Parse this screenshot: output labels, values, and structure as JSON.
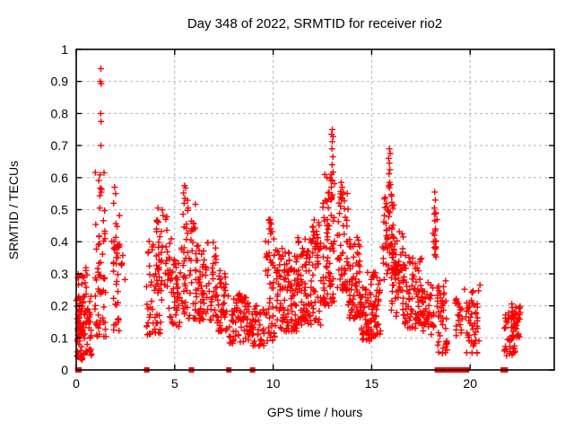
{
  "window": {
    "title": "Day 348 of 2022, SRMTID for receiver rio2"
  },
  "style": {
    "marker_color": "#ff0000",
    "grid_color": "#b4b4b4",
    "border_color": "#000000",
    "text_color": "#000000",
    "background": "#ffffff"
  },
  "chart_data": {
    "type": "scatter",
    "title": "Day 348 of 2022, SRMTID for receiver rio2",
    "xlabel": "GPS time / hours",
    "ylabel": "SRMTID / TECUs",
    "series_name": "SRMTID",
    "xlim": [
      0,
      24.27
    ],
    "ylim": [
      0,
      1
    ],
    "grid": true,
    "legend": "none",
    "x_ticks": [
      {
        "v": 0,
        "label": "0"
      },
      {
        "v": 5,
        "label": "5"
      },
      {
        "v": 10,
        "label": "10"
      },
      {
        "v": 15,
        "label": "15"
      },
      {
        "v": 20,
        "label": "20"
      }
    ],
    "y_ticks": [
      {
        "v": 0.0,
        "label": "0"
      },
      {
        "v": 0.1,
        "label": "0.1"
      },
      {
        "v": 0.2,
        "label": "0.2"
      },
      {
        "v": 0.3,
        "label": "0.3"
      },
      {
        "v": 0.4,
        "label": "0.4"
      },
      {
        "v": 0.5,
        "label": "0.5"
      },
      {
        "v": 0.6,
        "label": "0.6"
      },
      {
        "v": 0.7,
        "label": "0.7"
      },
      {
        "v": 0.8,
        "label": "0.8"
      },
      {
        "v": 0.9,
        "label": "0.9"
      },
      {
        "v": 1.0,
        "label": "1"
      }
    ],
    "marker": {
      "glyph": "plus",
      "size": 7,
      "color": "#ff0000"
    },
    "zero_marker": {
      "glyph": "filled-square",
      "size": 6,
      "color": "#ff0000"
    },
    "clusters": [
      [
        0.0,
        0.15,
        0.14,
        0.32,
        10,
        1.0
      ],
      [
        0.05,
        0.78,
        0.03,
        0.23,
        95,
        1.2
      ],
      [
        0.1,
        0.55,
        0.22,
        0.33,
        12,
        1.0
      ],
      [
        0.95,
        1.52,
        0.1,
        0.63,
        60,
        1.5
      ],
      [
        1.8,
        2.2,
        0.12,
        0.5,
        38,
        1.3
      ],
      [
        2.25,
        2.55,
        0.24,
        0.36,
        5,
        1.0
      ],
      [
        3.55,
        4.35,
        0.11,
        0.42,
        50,
        1.2
      ],
      [
        4.05,
        4.85,
        0.24,
        0.5,
        48,
        1.1
      ],
      [
        4.6,
        5.3,
        0.13,
        0.36,
        45,
        1.2
      ],
      [
        5.35,
        6.05,
        0.16,
        0.53,
        60,
        1.4
      ],
      [
        6.05,
        7.1,
        0.15,
        0.4,
        85,
        1.3
      ],
      [
        7.1,
        7.75,
        0.12,
        0.31,
        50,
        1.2
      ],
      [
        7.75,
        8.7,
        0.08,
        0.24,
        65,
        1.1
      ],
      [
        8.7,
        9.55,
        0.07,
        0.21,
        55,
        1.1
      ],
      [
        9.6,
        10.1,
        0.09,
        0.47,
        50,
        1.5
      ],
      [
        10.1,
        11.2,
        0.12,
        0.38,
        115,
        1.3
      ],
      [
        11.2,
        12.45,
        0.14,
        0.42,
        125,
        1.3
      ],
      [
        11.9,
        12.35,
        0.39,
        0.47,
        10,
        1.0
      ],
      [
        12.5,
        13.15,
        0.2,
        0.62,
        75,
        1.4
      ],
      [
        13.25,
        13.8,
        0.24,
        0.56,
        55,
        1.3
      ],
      [
        13.8,
        14.45,
        0.16,
        0.42,
        70,
        1.3
      ],
      [
        14.45,
        15.45,
        0.09,
        0.31,
        105,
        1.2
      ],
      [
        15.55,
        16.15,
        0.28,
        0.56,
        50,
        1.2
      ],
      [
        16.0,
        16.65,
        0.16,
        0.45,
        65,
        1.3
      ],
      [
        16.1,
        16.35,
        0.29,
        0.34,
        12,
        1.0
      ],
      [
        16.65,
        17.6,
        0.13,
        0.36,
        85,
        1.3
      ],
      [
        17.6,
        18.15,
        0.11,
        0.28,
        40,
        1.2
      ],
      [
        18.1,
        18.35,
        0.33,
        0.5,
        12,
        1.0
      ],
      [
        18.3,
        18.85,
        0.05,
        0.28,
        45,
        1.2
      ],
      [
        19.25,
        19.6,
        0.1,
        0.23,
        20,
        1.0
      ],
      [
        19.7,
        20.45,
        0.05,
        0.26,
        48,
        1.1
      ],
      [
        21.65,
        22.3,
        0.04,
        0.18,
        40,
        1.1
      ],
      [
        22.1,
        22.55,
        0.1,
        0.21,
        35,
        1.0
      ]
    ],
    "points": [
      [
        1.25,
        0.94
      ],
      [
        1.22,
        0.9
      ],
      [
        1.27,
        0.893
      ],
      [
        1.24,
        0.8
      ],
      [
        1.26,
        0.775
      ],
      [
        1.25,
        0.7
      ],
      [
        1.95,
        0.57
      ],
      [
        2.0,
        0.55
      ],
      [
        1.9,
        0.52
      ],
      [
        4.15,
        0.505
      ],
      [
        5.5,
        0.575
      ],
      [
        5.55,
        0.568
      ],
      [
        5.45,
        0.552
      ],
      [
        5.52,
        0.535
      ],
      [
        5.48,
        0.52
      ],
      [
        9.85,
        0.468
      ],
      [
        9.9,
        0.455
      ],
      [
        9.8,
        0.44
      ],
      [
        9.87,
        0.425
      ],
      [
        12.08,
        0.468
      ],
      [
        12.0,
        0.445
      ],
      [
        13.0,
        0.75
      ],
      [
        12.96,
        0.735
      ],
      [
        13.04,
        0.728
      ],
      [
        13.0,
        0.712
      ],
      [
        12.98,
        0.69
      ],
      [
        13.03,
        0.665
      ],
      [
        12.99,
        0.64
      ],
      [
        13.04,
        0.617
      ],
      [
        13.0,
        0.592
      ],
      [
        12.95,
        0.57
      ],
      [
        13.45,
        0.585
      ],
      [
        13.5,
        0.57
      ],
      [
        13.42,
        0.556
      ],
      [
        15.9,
        0.69
      ],
      [
        15.94,
        0.675
      ],
      [
        15.86,
        0.66
      ],
      [
        15.9,
        0.645
      ],
      [
        15.93,
        0.625
      ],
      [
        15.88,
        0.612
      ],
      [
        15.91,
        0.585
      ],
      [
        15.95,
        0.578
      ],
      [
        15.86,
        0.574
      ],
      [
        15.9,
        0.568
      ],
      [
        18.2,
        0.555
      ],
      [
        18.23,
        0.53
      ],
      [
        18.18,
        0.505
      ],
      [
        18.25,
        0.487
      ],
      [
        18.21,
        0.465
      ],
      [
        18.24,
        0.44
      ],
      [
        18.19,
        0.42
      ],
      [
        18.22,
        0.4
      ],
      [
        18.25,
        0.378
      ],
      [
        18.2,
        0.36
      ],
      [
        20.5,
        0.265
      ]
    ],
    "zero_points_x": [
      0.08,
      0.14,
      3.58,
      5.85,
      7.75,
      8.95,
      18.33,
      18.42,
      18.55,
      18.68,
      18.92,
      19.0,
      19.06,
      19.12,
      19.18,
      19.24,
      19.3,
      19.36,
      19.42,
      19.52,
      19.62,
      19.72,
      19.82,
      21.68,
      21.78
    ]
  }
}
